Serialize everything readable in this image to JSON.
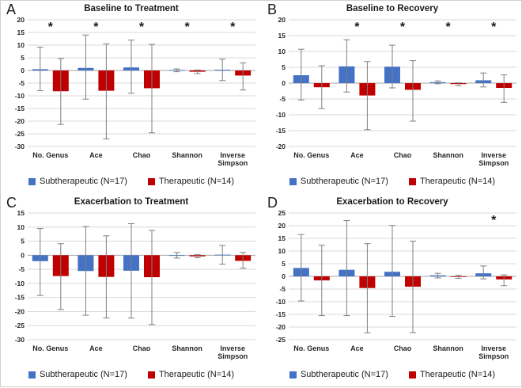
{
  "figure": {
    "sig_marker": "*",
    "colors": {
      "subtherapeutic": "#4472C4",
      "therapeutic": "#C00000",
      "whisker": "#7F7F7F",
      "gridline": "#D9D9D9",
      "zero_line": "#A6A6A6",
      "text": "#262626"
    },
    "legend": {
      "series": [
        {
          "label": "Subtherapeutic (N=17)",
          "color": "#4472C4"
        },
        {
          "label": "Therapeutic (N=14)",
          "color": "#C00000"
        }
      ]
    }
  },
  "chart_data": [
    {
      "type": "bar",
      "panel": "A",
      "title": "Baseline to Treatment",
      "categories": [
        "No. Genus",
        "Ace",
        "Chao",
        "Shannon",
        "Inverse Simpson"
      ],
      "ylim": [
        -30,
        20
      ],
      "ytick_step": 5,
      "grid": true,
      "legend_position": "bottom",
      "significant": [
        true,
        true,
        true,
        true,
        true
      ],
      "series": [
        {
          "name": "Subtherapeutic (N=17)",
          "color": "#4472C4",
          "values": [
            0.5,
            1.0,
            1.2,
            0.2,
            0.3
          ],
          "err_low": [
            -8.0,
            -11.3,
            -9.0,
            -0.5,
            -4.0
          ],
          "err_high": [
            9.2,
            14.0,
            12.0,
            0.6,
            4.5
          ]
        },
        {
          "name": "Therapeutic (N=14)",
          "color": "#C00000",
          "values": [
            -8.2,
            -8.0,
            -7.0,
            -0.5,
            -2.0
          ],
          "err_low": [
            -21.3,
            -27.0,
            -24.6,
            -1.2,
            -7.7
          ],
          "err_high": [
            4.7,
            10.5,
            10.3,
            0.2,
            3.0
          ]
        }
      ]
    },
    {
      "type": "bar",
      "panel": "B",
      "title": "Baseline to Recovery",
      "categories": [
        "No. Genus",
        "Ace",
        "Chao",
        "Shannon",
        "Inverse Simpson"
      ],
      "ylim": [
        -20,
        20
      ],
      "ytick_step": 5,
      "grid": true,
      "legend_position": "bottom",
      "significant": [
        false,
        true,
        true,
        true,
        true
      ],
      "series": [
        {
          "name": "Subtherapeutic (N=17)",
          "color": "#4472C4",
          "values": [
            2.5,
            5.3,
            5.2,
            0.3,
            0.9
          ],
          "err_low": [
            -5.3,
            -2.8,
            -1.5,
            -0.2,
            -1.2
          ],
          "err_high": [
            10.7,
            13.7,
            12.0,
            0.7,
            3.2
          ]
        },
        {
          "name": "Therapeutic (N=14)",
          "color": "#C00000",
          "values": [
            -1.3,
            -3.9,
            -2.1,
            -0.3,
            -1.5
          ],
          "err_low": [
            -8.0,
            -14.7,
            -12.0,
            -0.8,
            -6.1
          ],
          "err_high": [
            5.5,
            6.8,
            7.1,
            0.1,
            2.6
          ]
        }
      ]
    },
    {
      "type": "bar",
      "panel": "C",
      "title": "Exacerbation to Treatment",
      "categories": [
        "No. Genus",
        "Ace",
        "Chao",
        "Shannon",
        "Inverse Simpson"
      ],
      "ylim": [
        -30,
        15
      ],
      "ytick_step": 5,
      "grid": true,
      "legend_position": "bottom",
      "significant": [
        false,
        false,
        false,
        false,
        false
      ],
      "series": [
        {
          "name": "Subtherapeutic (N=17)",
          "color": "#4472C4",
          "values": [
            -2.1,
            -5.6,
            -5.5,
            -0.1,
            0.2
          ],
          "err_low": [
            -14.3,
            -21.3,
            -22.3,
            -1.0,
            -3.2
          ],
          "err_high": [
            9.5,
            10.2,
            11.2,
            1.0,
            3.5
          ]
        },
        {
          "name": "Therapeutic (N=14)",
          "color": "#C00000",
          "values": [
            -7.4,
            -7.7,
            -7.8,
            -0.4,
            -2.0
          ],
          "err_low": [
            -19.3,
            -22.3,
            -24.6,
            -0.9,
            -4.6
          ],
          "err_high": [
            4.1,
            6.9,
            8.8,
            0.2,
            1.0
          ]
        }
      ]
    },
    {
      "type": "bar",
      "panel": "D",
      "title": "Exacerbation to Recovery",
      "categories": [
        "No. Genus",
        "Ace",
        "Chao",
        "Shannon",
        "Inverse Simpson"
      ],
      "ylim": [
        -25,
        25
      ],
      "ytick_step": 5,
      "grid": true,
      "legend_position": "bottom",
      "significant": [
        false,
        false,
        false,
        false,
        true
      ],
      "series": [
        {
          "name": "Subtherapeutic (N=17)",
          "color": "#4472C4",
          "values": [
            3.3,
            2.6,
            1.8,
            0.4,
            1.2
          ],
          "err_low": [
            -9.7,
            -15.5,
            -15.8,
            -0.6,
            -1.0
          ],
          "err_high": [
            16.5,
            22.0,
            20.1,
            1.2,
            4.1
          ]
        },
        {
          "name": "Therapeutic (N=14)",
          "color": "#C00000",
          "values": [
            -1.6,
            -4.6,
            -4.1,
            -0.2,
            -1.2
          ],
          "err_low": [
            -15.5,
            -22.3,
            -22.2,
            -0.8,
            -3.7
          ],
          "err_high": [
            12.3,
            12.9,
            13.9,
            0.4,
            0.6
          ]
        }
      ]
    }
  ]
}
